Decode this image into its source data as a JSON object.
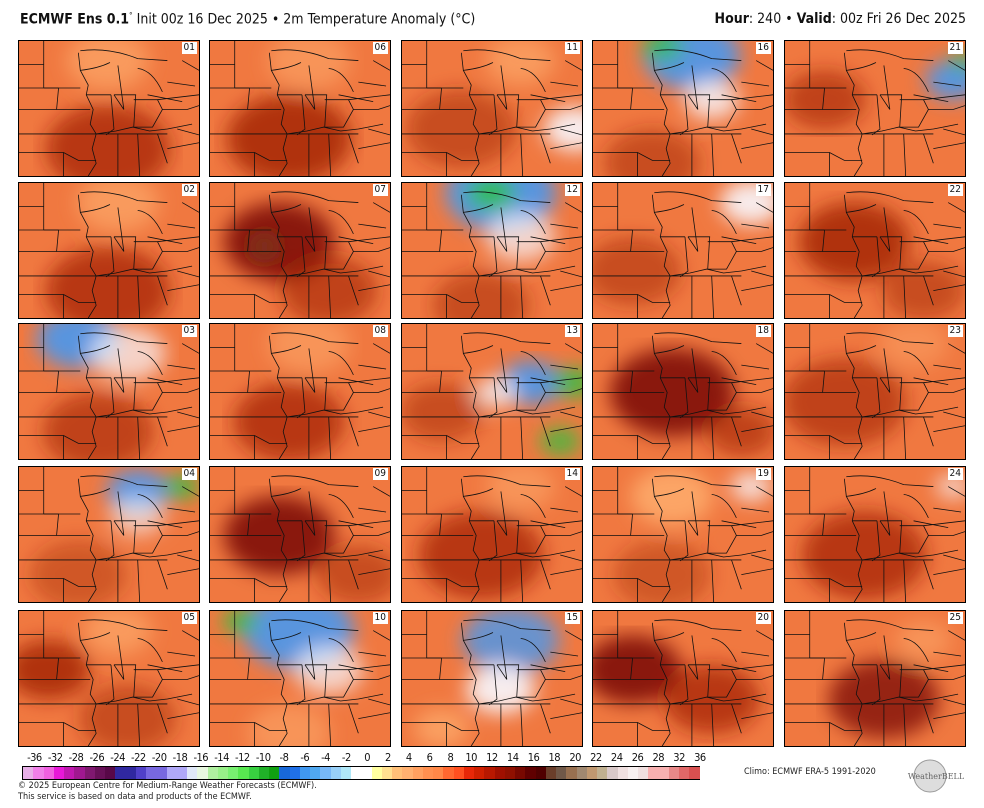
{
  "header": {
    "model": "ECMWF Ens 0.1",
    "deg": "°",
    "init": " Init 00z 16 Dec 2025 • 2m Temperature Anomaly (°C)",
    "hour_label": "Hour",
    "hour_value": ": 240 • ",
    "valid_label": "Valid",
    "valid_value": ": 00z Fri 26 Dec 2025"
  },
  "members": [
    "01",
    "06",
    "11",
    "16",
    "21",
    "02",
    "07",
    "12",
    "17",
    "22",
    "03",
    "08",
    "13",
    "18",
    "23",
    "04",
    "09",
    "14",
    "19",
    "24",
    "05",
    "10",
    "15",
    "20",
    "25"
  ],
  "colorbar": {
    "ticks": [
      "-36",
      "-32",
      "-28",
      "-26",
      "-24",
      "-22",
      "-20",
      "-18",
      "-16",
      "-14",
      "-12",
      "-10",
      "-8",
      "-6",
      "-4",
      "-2",
      "0",
      "2",
      "4",
      "6",
      "8",
      "10",
      "12",
      "14",
      "16",
      "18",
      "20",
      "22",
      "24",
      "26",
      "28",
      "32",
      "36"
    ],
    "colors": [
      "#e8b0e8",
      "#f080e8",
      "#f060e0",
      "#e818d8",
      "#c018b0",
      "#a01890",
      "#801870",
      "#681058",
      "#580848",
      "#3028a0",
      "#3028a0",
      "#5040c8",
      "#7868e0",
      "#7868e0",
      "#b0a8f8",
      "#b0a8f8",
      "#e0e8f8",
      "#e8f8e0",
      "#b0f0a0",
      "#98f088",
      "#78f070",
      "#58e850",
      "#38d040",
      "#20b028",
      "#10a010",
      "#1868d8",
      "#2070e8",
      "#4098f0",
      "#50a8f0",
      "#78b8f8",
      "#98d0f8",
      "#b0e8f8",
      "#ffffff",
      "#ffffff",
      "#ffffa0",
      "#ffe090",
      "#ffc078",
      "#ffb070",
      "#ffa060",
      "#ff9050",
      "#ff8848",
      "#ff6830",
      "#ff5020",
      "#e82808",
      "#d02000",
      "#b81800",
      "#a01000",
      "#901000",
      "#780800",
      "#600000",
      "#500000",
      "#6a3e2a",
      "#705848",
      "#987050",
      "#a08870",
      "#c09870",
      "#c0b090",
      "#d8c8c8",
      "#f0e0e0",
      "#f8f0f0",
      "#f0e0e0",
      "#f8b0b0",
      "#f8b0b0",
      "#e88888",
      "#e06868",
      "#d85050"
    ]
  },
  "footer": {
    "copyright": "© 2025 European Centre for Medium-Range Weather Forecasts (ECMWF).",
    "service": "This service is based on data and products of the ECMWF.",
    "climo": "Climo: ECMWF ERA-5 1991-2020",
    "logo_text": "WeatherBELL"
  }
}
